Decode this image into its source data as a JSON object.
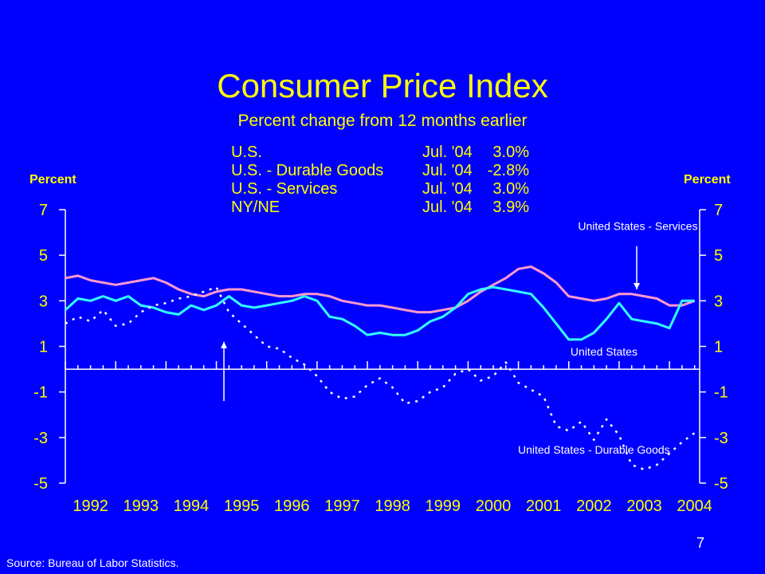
{
  "slide": {
    "title": "Consumer Price Index",
    "subtitle": "Percent change from 12 months earlier",
    "source": "Source: Bureau of Labor Statistics.",
    "page_number": "7",
    "left_axis_title": "Percent",
    "right_axis_title": "Percent",
    "colors": {
      "background": "#0000FF",
      "title": "#FFFF00",
      "axes": "#FFFFFF"
    }
  },
  "legend_table": [
    {
      "name": "U.S.",
      "date": "Jul. '04",
      "value": "3.0%"
    },
    {
      "name": "U.S. - Durable Goods",
      "date": "Jul. '04",
      "value": "-2.8%"
    },
    {
      "name": "U.S. - Services",
      "date": "Jul. '04",
      "value": "3.0%"
    },
    {
      "name": "NY/NE",
      "date": "Jul. '04",
      "value": "3.9%"
    }
  ],
  "chart_data": {
    "type": "line",
    "x_ticks": [
      "1992",
      "1993",
      "1994",
      "1995",
      "1996",
      "1997",
      "1998",
      "1999",
      "2000",
      "2001",
      "2002",
      "2003",
      "2004"
    ],
    "xlim": [
      1992.0,
      2004.6
    ],
    "ylim": [
      -5,
      7
    ],
    "y_ticks": [
      "7",
      "5",
      "3",
      "1",
      "-1",
      "-3",
      "-5"
    ],
    "y_tick_values": [
      7,
      5,
      3,
      1,
      -1,
      -3,
      -5
    ],
    "zero_line": 0,
    "annotations": [
      {
        "text": "United States - Services",
        "arrow": "down",
        "at": [
          2003.35,
          3.5
        ]
      },
      {
        "text": "United States",
        "arrow": "none",
        "at": [
          2002.7,
          0.6
        ]
      },
      {
        "text": "United States - Durable Goods",
        "arrow": "none",
        "at": [
          2002.5,
          -3.7
        ]
      },
      {
        "text": "",
        "arrow": "up",
        "at": [
          1995.15,
          1.2
        ]
      }
    ],
    "series": [
      {
        "name": "United States - Services",
        "color": "#FF99CC",
        "style": "solid",
        "x": [
          1992.0,
          1992.25,
          1992.5,
          1992.75,
          1993.0,
          1993.25,
          1993.5,
          1993.75,
          1994.0,
          1994.25,
          1994.5,
          1994.75,
          1995.0,
          1995.25,
          1995.5,
          1995.75,
          1996.0,
          1996.25,
          1996.5,
          1996.75,
          1997.0,
          1997.25,
          1997.5,
          1997.75,
          1998.0,
          1998.25,
          1998.5,
          1998.75,
          1999.0,
          1999.25,
          1999.5,
          1999.75,
          2000.0,
          2000.25,
          2000.5,
          2000.75,
          2001.0,
          2001.25,
          2001.5,
          2001.75,
          2002.0,
          2002.25,
          2002.5,
          2002.75,
          2003.0,
          2003.25,
          2003.5,
          2003.75,
          2004.0,
          2004.25,
          2004.5
        ],
        "values": [
          4.0,
          4.1,
          3.9,
          3.8,
          3.7,
          3.8,
          3.9,
          4.0,
          3.8,
          3.5,
          3.3,
          3.2,
          3.4,
          3.5,
          3.5,
          3.4,
          3.3,
          3.2,
          3.2,
          3.3,
          3.3,
          3.2,
          3.0,
          2.9,
          2.8,
          2.8,
          2.7,
          2.6,
          2.5,
          2.5,
          2.6,
          2.7,
          3.0,
          3.4,
          3.7,
          4.0,
          4.4,
          4.5,
          4.2,
          3.8,
          3.2,
          3.1,
          3.0,
          3.1,
          3.3,
          3.3,
          3.2,
          3.1,
          2.8,
          2.8,
          3.0
        ]
      },
      {
        "name": "United States",
        "color": "#33FFFF",
        "style": "solid",
        "x": [
          1992.0,
          1992.25,
          1992.5,
          1992.75,
          1993.0,
          1993.25,
          1993.5,
          1993.75,
          1994.0,
          1994.25,
          1994.5,
          1994.75,
          1995.0,
          1995.25,
          1995.5,
          1995.75,
          1996.0,
          1996.25,
          1996.5,
          1996.75,
          1997.0,
          1997.25,
          1997.5,
          1997.75,
          1998.0,
          1998.25,
          1998.5,
          1998.75,
          1999.0,
          1999.25,
          1999.5,
          1999.75,
          2000.0,
          2000.25,
          2000.5,
          2000.75,
          2001.0,
          2001.25,
          2001.5,
          2001.75,
          2002.0,
          2002.25,
          2002.5,
          2002.75,
          2003.0,
          2003.25,
          2003.5,
          2003.75,
          2004.0,
          2004.25,
          2004.5
        ],
        "values": [
          2.6,
          3.1,
          3.0,
          3.2,
          3.0,
          3.2,
          2.8,
          2.7,
          2.5,
          2.4,
          2.8,
          2.6,
          2.8,
          3.2,
          2.8,
          2.7,
          2.8,
          2.9,
          3.0,
          3.2,
          3.0,
          2.3,
          2.2,
          1.9,
          1.5,
          1.6,
          1.5,
          1.5,
          1.7,
          2.1,
          2.3,
          2.7,
          3.3,
          3.5,
          3.6,
          3.5,
          3.4,
          3.3,
          2.7,
          2.0,
          1.3,
          1.3,
          1.6,
          2.2,
          2.9,
          2.2,
          2.1,
          2.0,
          1.8,
          3.0,
          3.0
        ]
      },
      {
        "name": "United States - Durable Goods",
        "color": "#FFFFFF",
        "style": "dotted",
        "x": [
          1992.0,
          1992.25,
          1992.5,
          1992.75,
          1993.0,
          1993.25,
          1993.5,
          1993.75,
          1994.0,
          1994.25,
          1994.5,
          1994.75,
          1995.0,
          1995.25,
          1995.5,
          1995.75,
          1996.0,
          1996.25,
          1996.5,
          1996.75,
          1997.0,
          1997.25,
          1997.5,
          1997.75,
          1998.0,
          1998.25,
          1998.5,
          1998.75,
          1999.0,
          1999.25,
          1999.5,
          1999.75,
          2000.0,
          2000.25,
          2000.5,
          2000.75,
          2001.0,
          2001.25,
          2001.5,
          2001.75,
          2002.0,
          2002.25,
          2002.5,
          2002.75,
          2003.0,
          2003.25,
          2003.5,
          2003.75,
          2004.0,
          2004.25,
          2004.5
        ],
        "values": [
          2.0,
          2.3,
          2.1,
          2.6,
          1.9,
          2.0,
          2.5,
          2.8,
          2.9,
          3.1,
          3.2,
          3.4,
          3.6,
          2.5,
          2.0,
          1.5,
          1.0,
          0.9,
          0.5,
          0.2,
          -0.3,
          -1.0,
          -1.3,
          -1.2,
          -0.7,
          -0.4,
          -0.8,
          -1.5,
          -1.4,
          -1.0,
          -0.8,
          -0.2,
          0.0,
          -0.5,
          -0.3,
          0.3,
          -0.6,
          -0.9,
          -1.2,
          -2.5,
          -2.7,
          -2.3,
          -3.1,
          -2.2,
          -2.9,
          -4.2,
          -4.4,
          -4.2,
          -3.7,
          -3.2,
          -2.8
        ]
      }
    ]
  }
}
